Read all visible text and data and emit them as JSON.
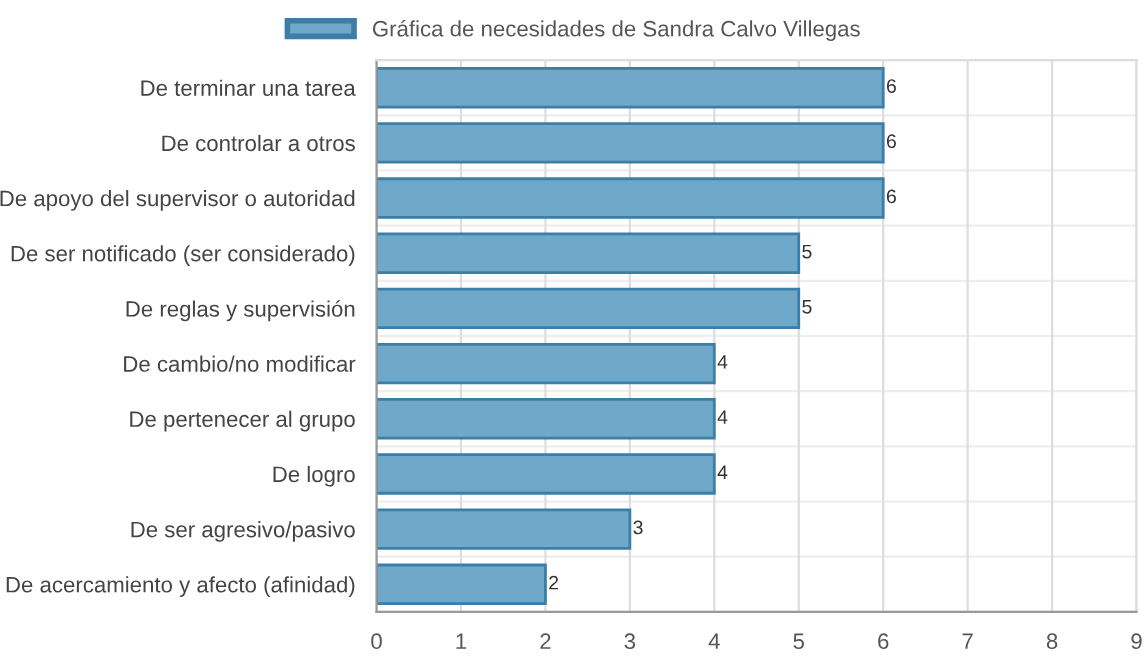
{
  "chart_data": {
    "type": "bar",
    "orientation": "horizontal",
    "categories": [
      "De terminar una tarea",
      "De controlar a otros",
      "De apoyo del supervisor o autoridad",
      "De ser notificado (ser considerado)",
      "De reglas y supervisión",
      "De cambio/no modificar",
      "De pertenecer al grupo",
      "De logro",
      "De ser agresivo/pasivo",
      "De acercamiento y afecto (afinidad)"
    ],
    "series": [
      {
        "name": "Gráfica de necesidades de Sandra Calvo Villegas",
        "color": "#6fa8c8",
        "values": [
          6,
          6,
          6,
          5,
          5,
          4,
          4,
          4,
          3,
          2
        ]
      }
    ],
    "xlim": [
      0,
      9
    ],
    "xticks": [
      0,
      1,
      2,
      3,
      4,
      5,
      6,
      7,
      8,
      9
    ],
    "grid": true,
    "legend": "top",
    "data_labels": true
  }
}
